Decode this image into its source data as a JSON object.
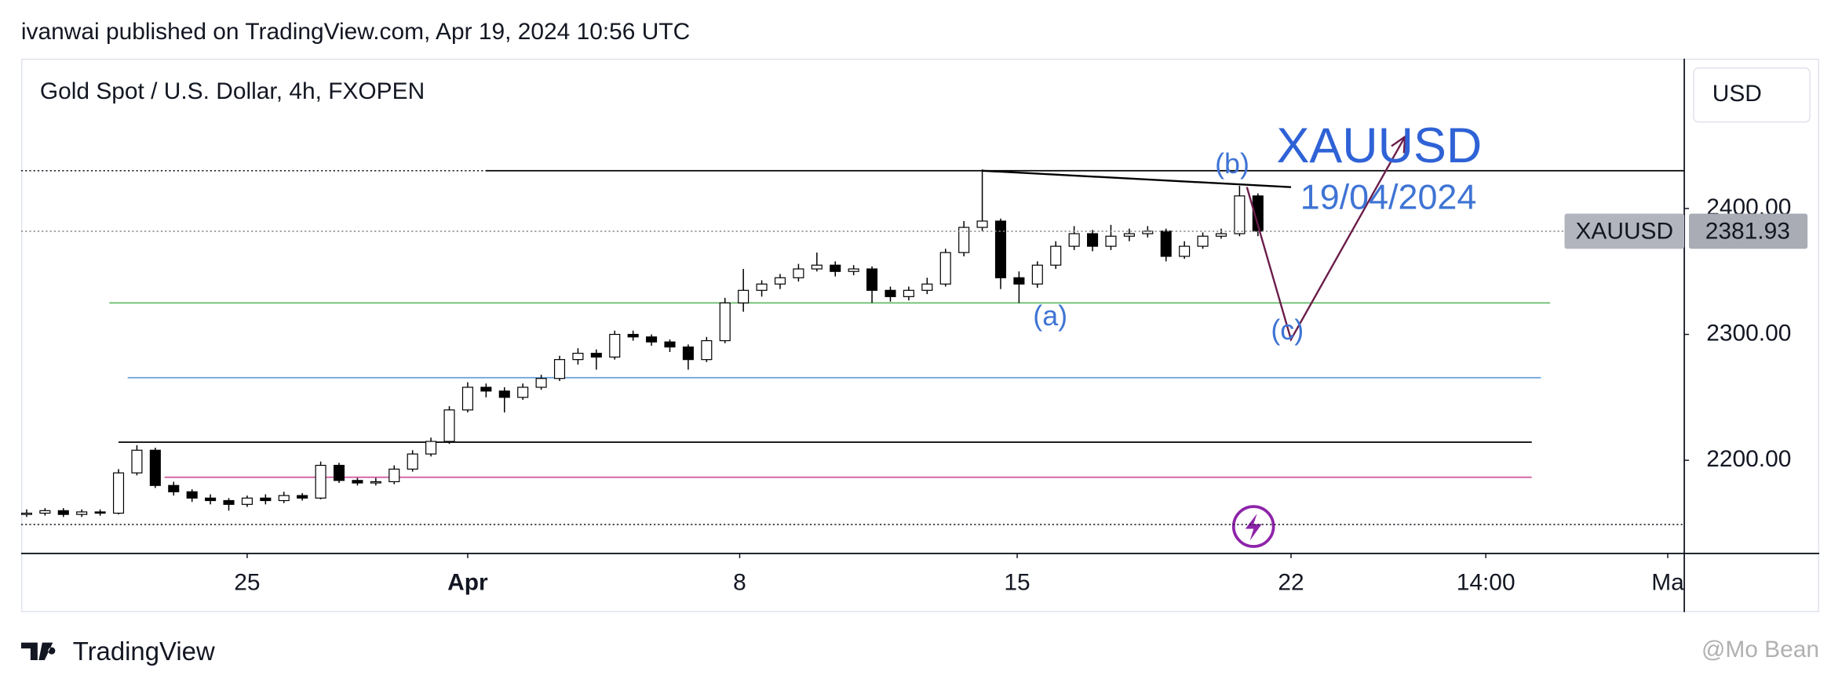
{
  "header": {
    "publisher": "ivanwai published on TradingView.com, Apr 19, 2024 10:56 UTC"
  },
  "footer": {
    "brand": "TradingView",
    "watermark": "@Mo Bean"
  },
  "currency_button": "USD",
  "chart_data": {
    "type": "candlestick",
    "title": "Gold Spot / U.S. Dollar, 4h, FXOPEN",
    "up_color": "#ffffff",
    "down_color": "#000000",
    "edge_color": "#000000",
    "open": [
      2157,
      2158,
      2160,
      2157,
      2159,
      2158,
      2190,
      2208,
      2180,
      2175,
      2170,
      2168,
      2165,
      2170,
      2168,
      2172,
      2170,
      2196,
      2184,
      2182,
      2183,
      2193,
      2205,
      2215,
      2240,
      2258,
      2255,
      2250,
      2258,
      2265,
      2280,
      2285,
      2282,
      2300,
      2298,
      2294,
      2290,
      2280,
      2295,
      2325,
      2335,
      2340,
      2345,
      2352,
      2355,
      2350,
      2352,
      2335,
      2330,
      2335,
      2340,
      2365,
      2385,
      2390,
      2345,
      2340,
      2355,
      2370,
      2380,
      2370,
      2378,
      2380,
      2382,
      2362,
      2370,
      2378,
      2380,
      2410
    ],
    "high": [
      2161,
      2162,
      2162,
      2161,
      2161,
      2193,
      2212,
      2210,
      2183,
      2177,
      2173,
      2170,
      2172,
      2173,
      2175,
      2174,
      2199,
      2198,
      2186,
      2186,
      2196,
      2208,
      2218,
      2243,
      2262,
      2261,
      2258,
      2261,
      2268,
      2283,
      2289,
      2288,
      2303,
      2303,
      2300,
      2296,
      2292,
      2298,
      2329,
      2352,
      2343,
      2348,
      2356,
      2365,
      2358,
      2355,
      2354,
      2338,
      2338,
      2345,
      2368,
      2390,
      2431,
      2392,
      2350,
      2358,
      2374,
      2386,
      2383,
      2387,
      2384,
      2386,
      2384,
      2374,
      2381,
      2384,
      2418,
      2412
    ],
    "low": [
      2155,
      2156,
      2155,
      2155,
      2156,
      2157,
      2188,
      2178,
      2172,
      2167,
      2165,
      2160,
      2163,
      2165,
      2166,
      2168,
      2169,
      2182,
      2180,
      2180,
      2181,
      2191,
      2203,
      2213,
      2238,
      2250,
      2238,
      2248,
      2256,
      2263,
      2276,
      2272,
      2280,
      2295,
      2291,
      2286,
      2272,
      2278,
      2293,
      2318,
      2330,
      2336,
      2342,
      2350,
      2346,
      2347,
      2325,
      2326,
      2327,
      2332,
      2338,
      2362,
      2382,
      2336,
      2325,
      2337,
      2352,
      2367,
      2366,
      2367,
      2374,
      2377,
      2358,
      2360,
      2368,
      2376,
      2378,
      2378
    ],
    "close": [
      2158,
      2160,
      2157,
      2159,
      2158,
      2190,
      2208,
      2180,
      2175,
      2170,
      2168,
      2165,
      2170,
      2168,
      2172,
      2170,
      2196,
      2184,
      2182,
      2183,
      2193,
      2205,
      2215,
      2240,
      2258,
      2255,
      2250,
      2258,
      2265,
      2280,
      2285,
      2282,
      2300,
      2298,
      2294,
      2290,
      2280,
      2295,
      2325,
      2335,
      2340,
      2345,
      2352,
      2355,
      2350,
      2352,
      2335,
      2330,
      2335,
      2340,
      2365,
      2385,
      2390,
      2345,
      2340,
      2355,
      2370,
      2380,
      2370,
      2378,
      2380,
      2382,
      2362,
      2370,
      2378,
      2380,
      2410,
      2382
    ],
    "xlim": [
      -0.3,
      90.2
    ],
    "xticks": [
      {
        "value": 12,
        "label": "25"
      },
      {
        "value": 24,
        "label": "Apr"
      },
      {
        "value": 38.8,
        "label": "8"
      },
      {
        "value": 53.9,
        "label": "15"
      },
      {
        "value": 68.8,
        "label": "22"
      },
      {
        "value": 79.4,
        "label": "14:00"
      },
      {
        "value": 89.3,
        "label": "Ma"
      }
    ],
    "ylim": [
      2126,
      2519
    ],
    "yticks": [
      {
        "value": 2200,
        "label": "2200.00"
      },
      {
        "value": 2300,
        "label": "2300.00"
      },
      {
        "value": 2400,
        "label": "2400.00"
      }
    ],
    "last_price": {
      "label": "XAUUSD",
      "value": 2381.93
    },
    "dotted_levels": [
      2430,
      2149
    ],
    "hlines": [
      {
        "value": 2430,
        "color": "#000000",
        "x": [
          25,
          90.2
        ]
      },
      {
        "value": 2325,
        "color": "#66bb6a",
        "x": [
          4.5,
          82.9
        ]
      },
      {
        "value": 2265.6,
        "color": "#64a0d8",
        "x": [
          5.5,
          82.4
        ]
      },
      {
        "value": 2214.4,
        "color": "#000000",
        "x": [
          5,
          81.9
        ]
      },
      {
        "value": 2186.5,
        "color": "#d0569a",
        "x": [
          7.5,
          81.9
        ]
      }
    ],
    "trendlines": [
      {
        "color": "#000000",
        "x": [
          52,
          68.8
        ],
        "y": [
          2430,
          2417
        ]
      },
      {
        "color": "#6b1d4a",
        "x": [
          66.4,
          68.8,
          75
        ],
        "y": [
          2417,
          2296,
          2457
        ],
        "arrow": true
      }
    ],
    "annotations": [
      {
        "text": "(a)",
        "x": 55.7,
        "y": 2313,
        "color": "#3f74d4",
        "size": 24
      },
      {
        "text": "(b)",
        "x": 65.6,
        "y": 2434,
        "color": "#3f74d4",
        "size": 24
      },
      {
        "text": "(c)",
        "x": 68.6,
        "y": 2302,
        "color": "#3f74d4",
        "size": 24
      },
      {
        "text": "XAUUSD",
        "x": 73.6,
        "y": 2447,
        "color": "#2f62d6",
        "size": 42
      },
      {
        "text": "19/04/2024",
        "x": 74.1,
        "y": 2407,
        "color": "#3f74d4",
        "size": 30
      }
    ]
  }
}
